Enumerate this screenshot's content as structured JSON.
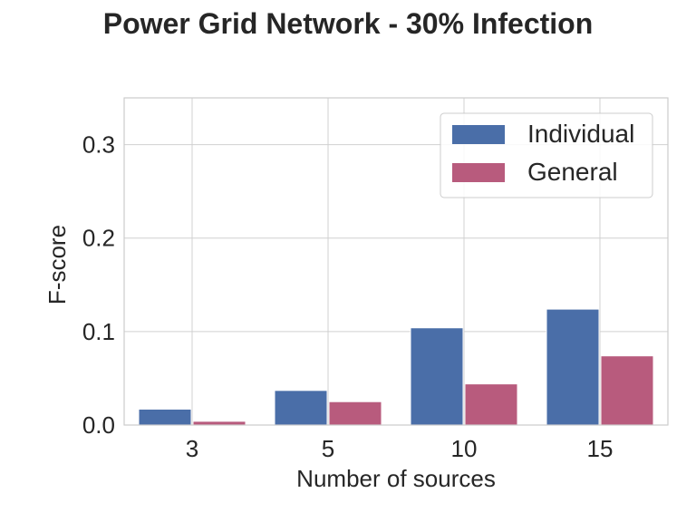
{
  "chart_data": {
    "type": "bar",
    "title": "Power Grid Network - 30% Infection",
    "xlabel": "Number of sources",
    "ylabel": "F-score",
    "categories": [
      "3",
      "5",
      "10",
      "15"
    ],
    "series": [
      {
        "name": "Individual",
        "color": "#4a6ea8",
        "values": [
          0.017,
          0.037,
          0.104,
          0.124
        ]
      },
      {
        "name": "General",
        "color": "#b85b7d",
        "values": [
          0.004,
          0.025,
          0.044,
          0.074
        ]
      }
    ],
    "ylim": [
      0,
      0.35
    ],
    "yticks": [
      "0.0",
      "0.1",
      "0.2",
      "0.3"
    ],
    "grid": true,
    "legend_position": "top-right"
  }
}
